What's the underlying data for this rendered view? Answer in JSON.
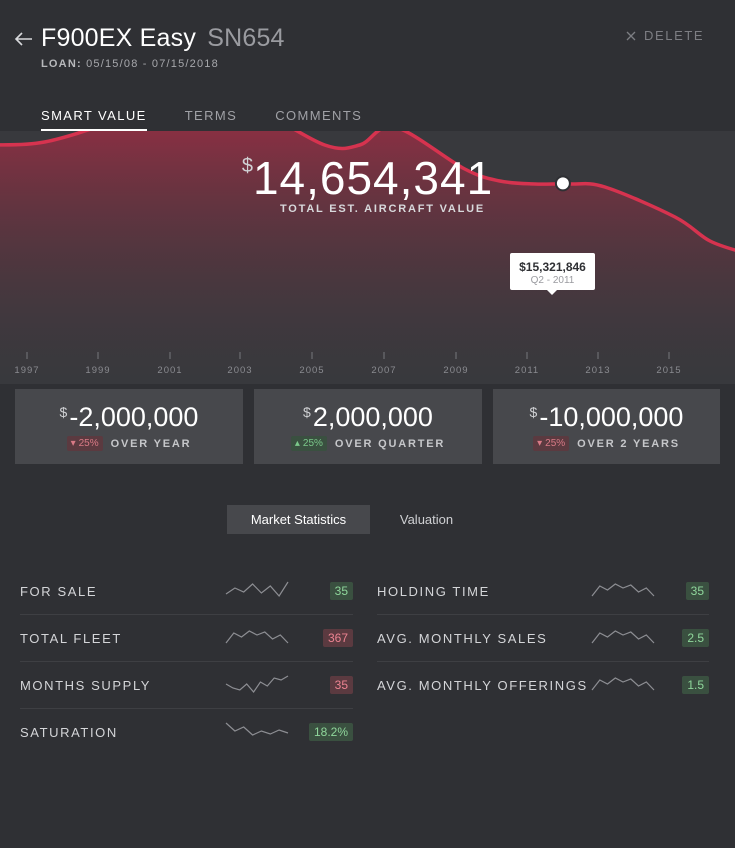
{
  "header": {
    "title": "F900EX Easy",
    "serial": "SN654",
    "loan_label": "LOAN:",
    "loan_dates": "05/15/08 - 07/15/2018",
    "delete_label": "DELETE"
  },
  "tabs": [
    {
      "label": "SMART VALUE",
      "active": true
    },
    {
      "label": "TERMS",
      "active": false
    },
    {
      "label": "COMMENTS",
      "active": false
    }
  ],
  "total_value": {
    "currency": "$",
    "value": "14,654,341",
    "label": "TOTAL EST. AIRCRAFT VALUE"
  },
  "chart_data": {
    "type": "area",
    "x": [
      1995.5,
      1997,
      1999,
      2001,
      2003,
      2005,
      2006,
      2007,
      2009,
      2010,
      2011,
      2012,
      2013,
      2015,
      2016,
      2017
    ],
    "y": [
      16.6,
      16.7,
      17.4,
      18.3,
      17.8,
      16.6,
      16.6,
      17.2,
      15.8,
      15.4,
      15.3,
      15.3,
      15.2,
      14.2,
      13.4,
      13.0
    ],
    "tick_labels": [
      "1997",
      "1999",
      "2001",
      "2003",
      "2005",
      "2007",
      "2009",
      "2011",
      "2013",
      "2015"
    ],
    "ylim": [
      10,
      20
    ],
    "grid": false,
    "line_color": "#d6334f",
    "highlight": {
      "x": 2011.8,
      "y": 15.32,
      "value": "$15,321,846",
      "date": "Q2 - 2011"
    }
  },
  "cards": [
    {
      "currency": "$",
      "value": "-2,000,000",
      "change": "25%",
      "direction": "down",
      "label": "OVER YEAR"
    },
    {
      "currency": "$",
      "value": "2,000,000",
      "change": "25%",
      "direction": "up",
      "label": "OVER QUARTER"
    },
    {
      "currency": "$",
      "value": "-10,000,000",
      "change": "25%",
      "direction": "down",
      "label": "OVER 2 YEARS"
    }
  ],
  "segments": [
    {
      "label": "Market Statistics",
      "active": true
    },
    {
      "label": "Valuation",
      "active": false
    }
  ],
  "stats_left": [
    {
      "label": "FOR SALE",
      "value": "35",
      "tone": "green",
      "spark": [
        8,
        14,
        10,
        18,
        9,
        16,
        6,
        20
      ]
    },
    {
      "label": "TOTAL FLEET",
      "value": "367",
      "tone": "red",
      "spark": [
        6,
        16,
        12,
        18,
        14,
        17,
        10,
        14,
        6
      ]
    },
    {
      "label": "MONTHS SUPPLY",
      "value": "35",
      "tone": "red",
      "spark": [
        12,
        8,
        6,
        12,
        4,
        14,
        10,
        18,
        16,
        20
      ]
    },
    {
      "label": "SATURATION",
      "value": "18.2%",
      "tone": "green",
      "spark": [
        20,
        12,
        16,
        8,
        12,
        9,
        13,
        10
      ]
    }
  ],
  "stats_right": [
    {
      "label": "HOLDING TIME",
      "value": "35",
      "tone": "green",
      "spark": [
        6,
        16,
        12,
        18,
        14,
        17,
        10,
        14,
        6
      ]
    },
    {
      "label": "AVG. MONTHLY SALES",
      "value": "2.5",
      "tone": "green",
      "spark": [
        6,
        16,
        12,
        18,
        14,
        17,
        10,
        14,
        6
      ]
    },
    {
      "label": "AVG. MONTHLY OFFERINGS",
      "value": "1.5",
      "tone": "green",
      "spark": [
        6,
        16,
        12,
        18,
        14,
        17,
        10,
        14,
        6
      ]
    }
  ],
  "colors": {
    "background": "#2f3034",
    "panel": "#38393d",
    "card": "#47484c",
    "accent": "#d6334f",
    "positive": "#8fd69b",
    "negative": "#ec8391"
  }
}
